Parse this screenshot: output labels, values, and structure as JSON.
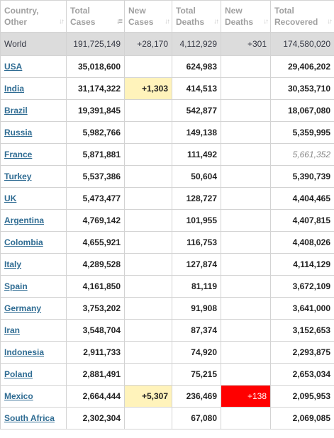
{
  "headers": [
    {
      "line1": "Country,",
      "line2": "Other",
      "sort_active": false
    },
    {
      "line1": "Total",
      "line2": "Cases",
      "sort_active": true
    },
    {
      "line1": "New",
      "line2": "Cases",
      "sort_active": false
    },
    {
      "line1": "Total",
      "line2": "Deaths",
      "sort_active": false
    },
    {
      "line1": "New",
      "line2": "Deaths",
      "sort_active": false
    },
    {
      "line1": "Total",
      "line2": "Recovered",
      "sort_active": false
    }
  ],
  "world": {
    "country": "World",
    "total_cases": "191,725,149",
    "new_cases": "+28,170",
    "total_deaths": "4,112,929",
    "new_deaths": "+301",
    "total_recovered": "174,580,020"
  },
  "rows": [
    {
      "country": "USA",
      "total_cases": "35,018,600",
      "new_cases": "",
      "total_deaths": "624,983",
      "new_deaths": "",
      "total_recovered": "29,406,202"
    },
    {
      "country": "India",
      "total_cases": "31,174,322",
      "new_cases": "+1,303",
      "total_deaths": "414,513",
      "new_deaths": "",
      "total_recovered": "30,353,710"
    },
    {
      "country": "Brazil",
      "total_cases": "19,391,845",
      "new_cases": "",
      "total_deaths": "542,877",
      "new_deaths": "",
      "total_recovered": "18,067,080"
    },
    {
      "country": "Russia",
      "total_cases": "5,982,766",
      "new_cases": "",
      "total_deaths": "149,138",
      "new_deaths": "",
      "total_recovered": "5,359,995"
    },
    {
      "country": "France",
      "total_cases": "5,871,881",
      "new_cases": "",
      "total_deaths": "111,492",
      "new_deaths": "",
      "total_recovered": "5,661,352",
      "recovered_italic": true
    },
    {
      "country": "Turkey",
      "total_cases": "5,537,386",
      "new_cases": "",
      "total_deaths": "50,604",
      "new_deaths": "",
      "total_recovered": "5,390,739"
    },
    {
      "country": "UK",
      "total_cases": "5,473,477",
      "new_cases": "",
      "total_deaths": "128,727",
      "new_deaths": "",
      "total_recovered": "4,404,465"
    },
    {
      "country": "Argentina",
      "total_cases": "4,769,142",
      "new_cases": "",
      "total_deaths": "101,955",
      "new_deaths": "",
      "total_recovered": "4,407,815"
    },
    {
      "country": "Colombia",
      "total_cases": "4,655,921",
      "new_cases": "",
      "total_deaths": "116,753",
      "new_deaths": "",
      "total_recovered": "4,408,026"
    },
    {
      "country": "Italy",
      "total_cases": "4,289,528",
      "new_cases": "",
      "total_deaths": "127,874",
      "new_deaths": "",
      "total_recovered": "4,114,129"
    },
    {
      "country": "Spain",
      "total_cases": "4,161,850",
      "new_cases": "",
      "total_deaths": "81,119",
      "new_deaths": "",
      "total_recovered": "3,672,109"
    },
    {
      "country": "Germany",
      "total_cases": "3,753,202",
      "new_cases": "",
      "total_deaths": "91,908",
      "new_deaths": "",
      "total_recovered": "3,641,000"
    },
    {
      "country": "Iran",
      "total_cases": "3,548,704",
      "new_cases": "",
      "total_deaths": "87,374",
      "new_deaths": "",
      "total_recovered": "3,152,653"
    },
    {
      "country": "Indonesia",
      "total_cases": "2,911,733",
      "new_cases": "",
      "total_deaths": "74,920",
      "new_deaths": "",
      "total_recovered": "2,293,875"
    },
    {
      "country": "Poland",
      "total_cases": "2,881,491",
      "new_cases": "",
      "total_deaths": "75,215",
      "new_deaths": "",
      "total_recovered": "2,653,034"
    },
    {
      "country": "Mexico",
      "total_cases": "2,664,444",
      "new_cases": "+5,307",
      "total_deaths": "236,469",
      "new_deaths": "+138",
      "total_recovered": "2,095,953"
    },
    {
      "country": "South Africa",
      "total_cases": "2,302,304",
      "new_cases": "",
      "total_deaths": "67,080",
      "new_deaths": "",
      "total_recovered": "2,069,085"
    }
  ],
  "colors": {
    "link": "#2f6c93",
    "header_text": "#a0a0a0",
    "world_row_bg": "#dcdcdc",
    "new_cases_highlight": "#fff3bb",
    "new_deaths_highlight": "#ff0000",
    "border": "#d3d3d3"
  },
  "icons": {
    "sort_default": "sort-arrows-icon",
    "sort_active": "sort-descending-icon"
  }
}
